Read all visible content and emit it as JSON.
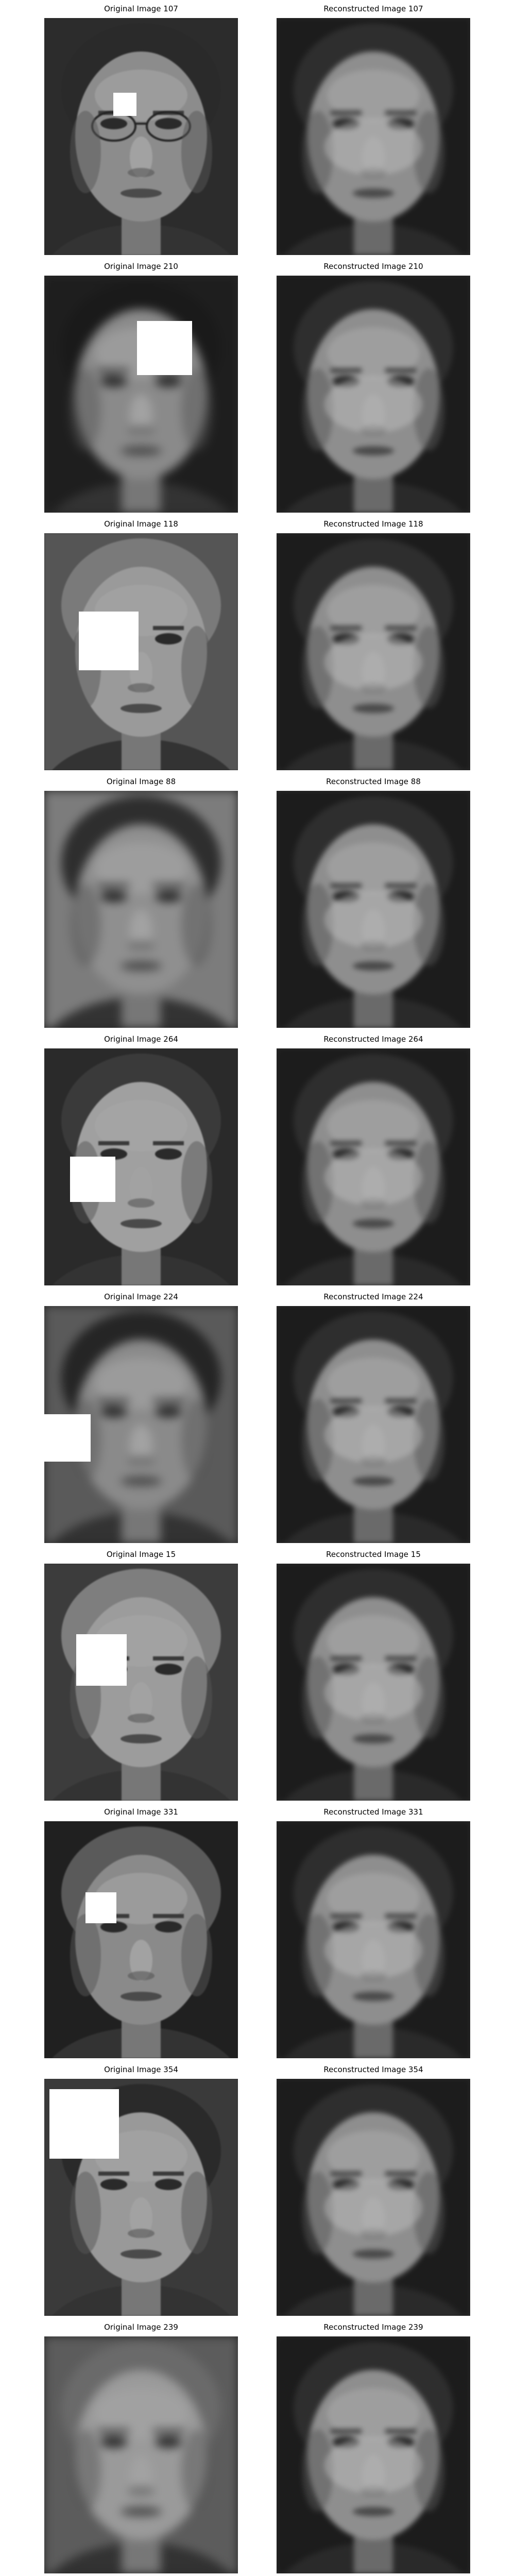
{
  "figure": {
    "pairs": [
      {
        "id": 107,
        "original_title": "Original Image 107",
        "reconstructed_title": "Reconstructed Image 107"
      },
      {
        "id": 210,
        "original_title": "Original Image 210",
        "reconstructed_title": "Reconstructed Image 210"
      },
      {
        "id": 118,
        "original_title": "Original Image 118",
        "reconstructed_title": "Reconstructed Image 118"
      },
      {
        "id": 88,
        "original_title": "Original Image 88",
        "reconstructed_title": "Reconstructed Image 88"
      },
      {
        "id": 264,
        "original_title": "Original Image 264",
        "reconstructed_title": "Reconstructed Image 264"
      },
      {
        "id": 224,
        "original_title": "Original Image 224",
        "reconstructed_title": "Reconstructed Image 224"
      },
      {
        "id": 15,
        "original_title": "Original Image 15",
        "reconstructed_title": "Reconstructed Image 15"
      },
      {
        "id": 331,
        "original_title": "Original Image 331",
        "reconstructed_title": "Reconstructed Image 331"
      },
      {
        "id": 354,
        "original_title": "Original Image 354",
        "reconstructed_title": "Reconstructed Image 354"
      },
      {
        "id": 239,
        "original_title": "Original Image 239",
        "reconstructed_title": "Reconstructed Image 239"
      }
    ]
  },
  "colors": {
    "page_background": "#ffffff",
    "title_text": "#000000",
    "occlusion_mask": "#ffffff"
  }
}
